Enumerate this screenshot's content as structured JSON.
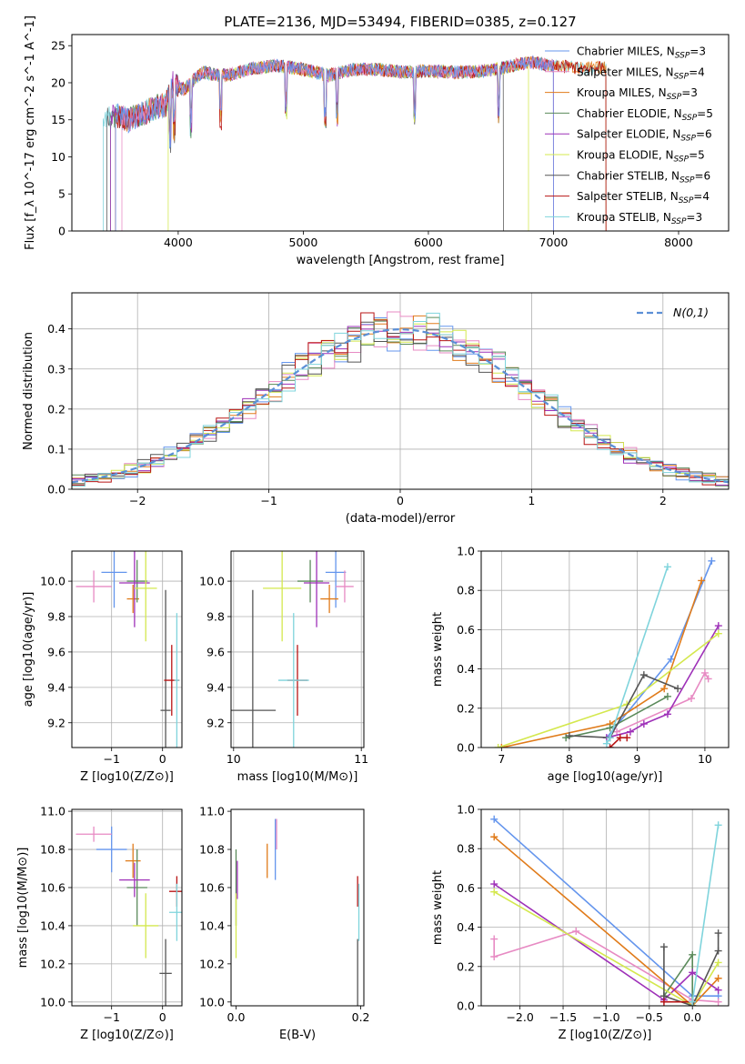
{
  "figure": {
    "title": "PLATE=2136, MJD=53494, FIBERID=0385, z=0.127"
  },
  "models": [
    {
      "name": "Chabrier MILES",
      "nssp": "3",
      "color": "#6495ed"
    },
    {
      "name": "Salpeter MILES",
      "nssp": "4",
      "color": "#e78ac3"
    },
    {
      "name": "Kroupa MILES",
      "nssp": "3",
      "color": "#e07b1a"
    },
    {
      "name": "Chabrier ELODIE",
      "nssp": "5",
      "color": "#5a8a5a"
    },
    {
      "name": "Salpeter ELODIE",
      "nssp": "6",
      "color": "#9e30b8"
    },
    {
      "name": "Kroupa ELODIE",
      "nssp": "5",
      "color": "#d4e84e"
    },
    {
      "name": "Chabrier STELIB",
      "nssp": "6",
      "color": "#555555"
    },
    {
      "name": "Salpeter STELIB",
      "nssp": "4",
      "color": "#b81414"
    },
    {
      "name": "Kroupa STELIB",
      "nssp": "3",
      "color": "#7fd4dc"
    }
  ],
  "chart_data": [
    {
      "id": "spectrum",
      "type": "line",
      "xlabel": "wavelength [Angstrom, rest frame]",
      "ylabel": "Flux [f_λ 10^-17 erg cm^-2 s^-1 A^-1]",
      "xlim": [
        3150,
        8400
      ],
      "ylim": [
        0,
        26.5
      ],
      "xticks": [
        4000,
        5000,
        6000,
        7000,
        8000
      ],
      "yticks": [
        0,
        5,
        10,
        15,
        20,
        25
      ],
      "grid": false,
      "legend": "top-right",
      "model_ranges": [
        [
          3500,
          7000
        ],
        [
          3550,
          7000
        ],
        [
          3500,
          7420
        ],
        [
          3460,
          7000
        ],
        [
          3460,
          7000
        ],
        [
          3920,
          6800
        ],
        [
          3430,
          6600
        ],
        [
          3500,
          7420
        ],
        [
          3400,
          7420
        ]
      ],
      "continuum": [
        [
          3400,
          15
        ],
        [
          3520,
          15.5
        ],
        [
          3600,
          15
        ],
        [
          3700,
          15.8
        ],
        [
          3800,
          16.5
        ],
        [
          3900,
          17
        ],
        [
          3960,
          20
        ],
        [
          4050,
          19
        ],
        [
          4100,
          20
        ],
        [
          4200,
          21.5
        ],
        [
          4300,
          21
        ],
        [
          4400,
          21
        ],
        [
          4600,
          22
        ],
        [
          4800,
          22.3
        ],
        [
          5000,
          21.8
        ],
        [
          5200,
          21
        ],
        [
          5400,
          21.8
        ],
        [
          5600,
          21.8
        ],
        [
          5800,
          21.4
        ],
        [
          6000,
          21.6
        ],
        [
          6200,
          21.4
        ],
        [
          6400,
          21.5
        ],
        [
          6600,
          22
        ],
        [
          6800,
          22.8
        ],
        [
          7000,
          22.3
        ],
        [
          7200,
          22
        ],
        [
          7420,
          22
        ]
      ]
    },
    {
      "id": "residuals",
      "type": "area",
      "xlabel": "(data-model)/error",
      "ylabel": "Normed distribution",
      "xlim": [
        -2.5,
        2.5
      ],
      "ylim": [
        0,
        0.49
      ],
      "xticks": [
        -2,
        -1,
        0,
        1,
        2
      ],
      "yticks": [
        0.0,
        0.1,
        0.2,
        0.3,
        0.4
      ],
      "grid": true,
      "legend": "top-right",
      "reference": {
        "label": "N(0,1)",
        "color": "#5b8fd6",
        "mu": 0,
        "sigma": 1
      }
    },
    {
      "id": "age-vs-Z",
      "type": "scatter",
      "xlabel": "Z [log10(Z/Z⊙)]",
      "ylabel": "age  [log10(age/yr)]",
      "xlim": [
        -1.78,
        0.38
      ],
      "ylim": [
        9.06,
        10.17
      ],
      "xticks": [
        -1,
        0
      ],
      "yticks": [
        9.2,
        9.4,
        9.6,
        9.8,
        10.0
      ],
      "grid": true,
      "points": [
        {
          "x": -0.95,
          "y": 10.05,
          "xerr": 0.25,
          "yerr": 0.2
        },
        {
          "x": -1.35,
          "y": 9.97,
          "xerr": 0.35,
          "yerr": 0.09
        },
        {
          "x": -0.58,
          "y": 9.9,
          "xerr": 0.12,
          "yerr": 0.08
        },
        {
          "x": -0.5,
          "y": 10.0,
          "xerr": 0.2,
          "yerr": 0.12
        },
        {
          "x": -0.55,
          "y": 9.99,
          "xerr": 0.3,
          "yerr": 0.25
        },
        {
          "x": -0.33,
          "y": 9.96,
          "xerr": 0.22,
          "yerr": 0.3
        },
        {
          "x": 0.06,
          "y": 9.27,
          "xerr": 0.1,
          "yerr": 0.68
        },
        {
          "x": 0.18,
          "y": 9.44,
          "xerr": 0.15,
          "yerr": 0.2
        },
        {
          "x": 0.28,
          "y": 9.44,
          "xerr": 0.05,
          "yerr": 0.38
        }
      ]
    },
    {
      "id": "age-vs-mass",
      "type": "scatter",
      "xlabel": "mass [log10(M/M⊙)]",
      "ylabel": "",
      "xlim": [
        9.98,
        11.02
      ],
      "ylim": [
        9.06,
        10.17
      ],
      "xticks": [
        10,
        11
      ],
      "yticks": [
        9.2,
        9.4,
        9.6,
        9.8,
        10.0
      ],
      "grid": true,
      "points": [
        {
          "x": 10.8,
          "y": 10.05,
          "xerr": 0.08,
          "yerr": 0.2
        },
        {
          "x": 10.87,
          "y": 9.97,
          "xerr": 0.07,
          "yerr": 0.09
        },
        {
          "x": 10.75,
          "y": 9.9,
          "xerr": 0.07,
          "yerr": 0.08
        },
        {
          "x": 10.6,
          "y": 10.0,
          "xerr": 0.1,
          "yerr": 0.12
        },
        {
          "x": 10.65,
          "y": 9.99,
          "xerr": 0.1,
          "yerr": 0.25
        },
        {
          "x": 10.38,
          "y": 9.96,
          "xerr": 0.15,
          "yerr": 0.3
        },
        {
          "x": 10.15,
          "y": 9.27,
          "xerr": 0.18,
          "yerr": 0.68
        },
        {
          "x": 10.5,
          "y": 9.44,
          "xerr": 0.08,
          "yerr": 0.2
        },
        {
          "x": 10.47,
          "y": 9.44,
          "xerr": 0.12,
          "yerr": 0.38
        }
      ]
    },
    {
      "id": "weight-vs-age",
      "type": "line",
      "xlabel": "age  [log10(age/yr)]",
      "ylabel": "mass weight",
      "xlim": [
        6.7,
        10.35
      ],
      "ylim": [
        0,
        1.0
      ],
      "xticks": [
        7,
        8,
        9,
        10
      ],
      "yticks": [
        0.0,
        0.2,
        0.4,
        0.6,
        0.8,
        1.0
      ],
      "grid": true,
      "series": [
        {
          "model": 0,
          "x": [
            8.55,
            9.5,
            10.1
          ],
          "y": [
            0.05,
            0.45,
            0.95
          ]
        },
        {
          "model": 1,
          "x": [
            8.7,
            9.8,
            10.0,
            10.05
          ],
          "y": [
            0.08,
            0.25,
            0.38,
            0.35
          ]
        },
        {
          "model": 2,
          "x": [
            7.0,
            8.6,
            9.4,
            9.95
          ],
          "y": [
            0.0,
            0.12,
            0.3,
            0.85
          ]
        },
        {
          "model": 3,
          "x": [
            7.95,
            8.6,
            9.45
          ],
          "y": [
            0.05,
            0.1,
            0.26
          ]
        },
        {
          "model": 4,
          "x": [
            8.55,
            8.9,
            9.1,
            9.45,
            10.2
          ],
          "y": [
            0.05,
            0.08,
            0.12,
            0.17,
            0.62
          ]
        },
        {
          "model": 5,
          "x": [
            6.95,
            8.85,
            10.2
          ],
          "y": [
            0.0,
            0.22,
            0.58
          ]
        },
        {
          "model": 6,
          "x": [
            8.0,
            8.6,
            9.1,
            9.6
          ],
          "y": [
            0.06,
            0.05,
            0.37,
            0.3
          ]
        },
        {
          "model": 7,
          "x": [
            8.6,
            8.75,
            8.85
          ],
          "y": [
            0.0,
            0.05,
            0.05
          ]
        },
        {
          "model": 8,
          "x": [
            8.55,
            8.6,
            9.45
          ],
          "y": [
            0.02,
            0.05,
            0.92
          ]
        }
      ]
    },
    {
      "id": "mass-vs-Z",
      "type": "scatter",
      "xlabel": "Z [log10(Z/Z⊙)]",
      "ylabel": "mass [log10(M/M⊙)]",
      "xlim": [
        -1.78,
        0.38
      ],
      "ylim": [
        9.98,
        11.01
      ],
      "xticks": [
        -1,
        0
      ],
      "yticks": [
        10.0,
        10.2,
        10.4,
        10.6,
        10.8,
        11.0
      ],
      "grid": true,
      "points": [
        {
          "x": -1.0,
          "y": 10.8,
          "xerr": 0.3,
          "yerr": 0.12
        },
        {
          "x": -1.35,
          "y": 10.88,
          "xerr": 0.35,
          "yerr": 0.04
        },
        {
          "x": -0.58,
          "y": 10.74,
          "xerr": 0.15,
          "yerr": 0.09
        },
        {
          "x": -0.5,
          "y": 10.6,
          "xerr": 0.2,
          "yerr": 0.2
        },
        {
          "x": -0.55,
          "y": 10.64,
          "xerr": 0.3,
          "yerr": 0.09
        },
        {
          "x": -0.33,
          "y": 10.4,
          "xerr": 0.25,
          "yerr": 0.17
        },
        {
          "x": 0.06,
          "y": 10.15,
          "xerr": 0.12,
          "yerr": 0.18
        },
        {
          "x": 0.28,
          "y": 10.58,
          "xerr": 0.15,
          "yerr": 0.08
        },
        {
          "x": 0.28,
          "y": 10.47,
          "xerr": 0.15,
          "yerr": 0.15
        }
      ]
    },
    {
      "id": "mass-vs-EBV",
      "type": "scatter",
      "xlabel": "E(B-V)",
      "ylabel": "",
      "xlim": [
        -0.008,
        0.205
      ],
      "ylim": [
        9.98,
        11.01
      ],
      "xticks": [
        0.0,
        0.2
      ],
      "yticks": [
        10.0,
        10.2,
        10.4,
        10.6,
        10.8,
        11.0
      ],
      "grid": false,
      "points": [
        {
          "x": 0.063,
          "y": 10.8,
          "xerr": 0,
          "yerr": 0.16
        },
        {
          "x": 0.065,
          "y": 10.88,
          "xerr": 0,
          "yerr": 0.08
        },
        {
          "x": 0.05,
          "y": 10.74,
          "xerr": 0,
          "yerr": 0.09
        },
        {
          "x": 0.0,
          "y": 10.6,
          "xerr": 0,
          "yerr": 0.2
        },
        {
          "x": 0.002,
          "y": 10.64,
          "xerr": 0,
          "yerr": 0.1
        },
        {
          "x": 0.0,
          "y": 10.4,
          "xerr": 0,
          "yerr": 0.17
        },
        {
          "x": 0.195,
          "y": 10.15,
          "xerr": 0,
          "yerr": 0.18
        },
        {
          "x": 0.195,
          "y": 10.58,
          "xerr": 0,
          "yerr": 0.08
        },
        {
          "x": 0.197,
          "y": 10.47,
          "xerr": 0,
          "yerr": 0.15
        }
      ]
    },
    {
      "id": "weight-vs-Z",
      "type": "line",
      "xlabel": "Z [log10(Z/Z⊙)]",
      "ylabel": "mass weight",
      "xlim": [
        -2.45,
        0.42
      ],
      "ylim": [
        0,
        1.0
      ],
      "xticks": [
        -2.0,
        -1.5,
        -1.0,
        -0.5,
        0.0
      ],
      "yticks": [
        0.0,
        0.2,
        0.4,
        0.6,
        0.8,
        1.0
      ],
      "grid": true,
      "series": [
        {
          "model": 0,
          "x": [
            -2.3,
            0.0,
            0.3
          ],
          "y": [
            0.95,
            0.05,
            0.05
          ]
        },
        {
          "model": 1,
          "x": [
            -2.3,
            -2.3,
            -1.35,
            0.0,
            0.3
          ],
          "y": [
            0.34,
            0.25,
            0.38,
            0.03,
            0.02
          ]
        },
        {
          "model": 2,
          "x": [
            -2.3,
            0.0,
            0.3
          ],
          "y": [
            0.86,
            0.0,
            0.14
          ]
        },
        {
          "model": 3,
          "x": [
            -0.33,
            0.0,
            0.0
          ],
          "y": [
            0.05,
            0.26,
            0.0
          ]
        },
        {
          "model": 4,
          "x": [
            -2.3,
            -0.33,
            0.0,
            0.3
          ],
          "y": [
            0.62,
            0.03,
            0.17,
            0.08
          ]
        },
        {
          "model": 5,
          "x": [
            -2.3,
            0.0,
            0.3
          ],
          "y": [
            0.58,
            0.0,
            0.22
          ]
        },
        {
          "model": 6,
          "x": [
            -0.33,
            -0.33,
            0.0,
            0.3,
            0.3
          ],
          "y": [
            0.3,
            0.05,
            0.0,
            0.28,
            0.37
          ]
        },
        {
          "model": 7,
          "x": [
            -0.33,
            0.0
          ],
          "y": [
            0.02,
            0.02
          ]
        },
        {
          "model": 8,
          "x": [
            0.0,
            0.3
          ],
          "y": [
            0.02,
            0.92
          ]
        }
      ]
    }
  ]
}
